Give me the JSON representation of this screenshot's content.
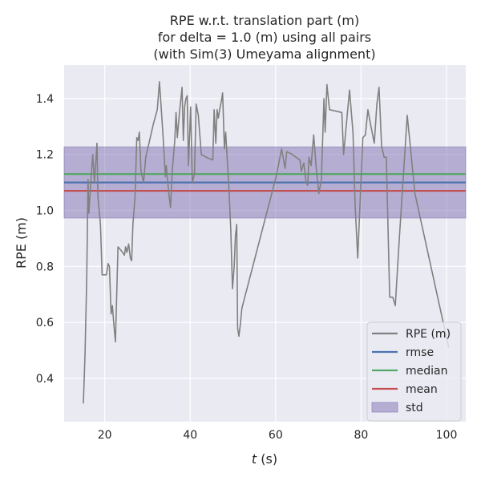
{
  "chart_data": {
    "type": "line",
    "title_lines": [
      "RPE w.r.t. translation part (m)",
      "for delta = 1.0 (m) using all pairs",
      "(with Sim(3) Umeyama alignment)"
    ],
    "xlabel_italic": "t",
    "xlabel_rest": " (s)",
    "ylabel": "RPE (m)",
    "xlim": [
      10.5,
      104.5
    ],
    "ylim": [
      0.245,
      1.52
    ],
    "xticks": [
      20,
      40,
      60,
      80,
      100
    ],
    "yticks": [
      0.4,
      0.6,
      0.8,
      1.0,
      1.2,
      1.4
    ],
    "grid": true,
    "legend_position": "lower-right",
    "colors": {
      "background": "#eaeaf2",
      "grid": "#ffffff",
      "rpe": "#808080",
      "rmse": "#4c72b0",
      "median": "#55a868",
      "mean": "#c44e52",
      "std_fill": "#8172b2"
    },
    "stats": {
      "rmse": 1.1,
      "median": 1.13,
      "mean": 1.07,
      "std": 0.127
    },
    "legend": [
      {
        "key": "rpe",
        "label": "RPE (m)",
        "kind": "line"
      },
      {
        "key": "rmse",
        "label": "rmse",
        "kind": "line"
      },
      {
        "key": "median",
        "label": "median",
        "kind": "line"
      },
      {
        "key": "mean",
        "label": "mean",
        "kind": "line"
      },
      {
        "key": "std_fill",
        "label": "std",
        "kind": "patch"
      }
    ],
    "series": [
      {
        "name": "RPE (m)",
        "points": [
          [
            15,
            0.31
          ],
          [
            15.4,
            0.49
          ],
          [
            15.8,
            0.76
          ],
          [
            16.1,
            1.11
          ],
          [
            16.3,
            0.99
          ],
          [
            16.7,
            1.09
          ],
          [
            17.2,
            1.2
          ],
          [
            17.6,
            1.1
          ],
          [
            18.2,
            1.24
          ],
          [
            18.4,
            1.05
          ],
          [
            19,
            0.95
          ],
          [
            19.4,
            0.77
          ],
          [
            20.4,
            0.77
          ],
          [
            20.8,
            0.81
          ],
          [
            21.1,
            0.8
          ],
          [
            21.5,
            0.63
          ],
          [
            21.8,
            0.66
          ],
          [
            22.1,
            0.6
          ],
          [
            22.5,
            0.53
          ],
          [
            23.1,
            0.87
          ],
          [
            24.2,
            0.85
          ],
          [
            24.6,
            0.84
          ],
          [
            24.9,
            0.87
          ],
          [
            25.2,
            0.85
          ],
          [
            25.6,
            0.88
          ],
          [
            26,
            0.83
          ],
          [
            26.3,
            0.82
          ],
          [
            26.6,
            0.95
          ],
          [
            27.1,
            1.05
          ],
          [
            27.5,
            1.26
          ],
          [
            27.8,
            1.25
          ],
          [
            28.1,
            1.28
          ],
          [
            28.5,
            1.14
          ],
          [
            29.1,
            1.1
          ],
          [
            29.6,
            1.19
          ],
          [
            31.4,
            1.31
          ],
          [
            32.3,
            1.36
          ],
          [
            32.8,
            1.46
          ],
          [
            33.6,
            1.28
          ],
          [
            34.2,
            1.12
          ],
          [
            34.4,
            1.16
          ],
          [
            35,
            1.06
          ],
          [
            35.4,
            1.01
          ],
          [
            35.8,
            1.14
          ],
          [
            36.4,
            1.25
          ],
          [
            36.7,
            1.35
          ],
          [
            37,
            1.26
          ],
          [
            37.5,
            1.35
          ],
          [
            38.1,
            1.44
          ],
          [
            38.4,
            1.25
          ],
          [
            38.7,
            1.37
          ],
          [
            39,
            1.4
          ],
          [
            39.3,
            1.41
          ],
          [
            39.6,
            1.16
          ],
          [
            40.1,
            1.37
          ],
          [
            40.5,
            1.1
          ],
          [
            41,
            1.13
          ],
          [
            41.4,
            1.38
          ],
          [
            41.9,
            1.34
          ],
          [
            42.6,
            1.2
          ],
          [
            43.8,
            1.19
          ],
          [
            45.3,
            1.18
          ],
          [
            45.6,
            1.36
          ],
          [
            46,
            1.24
          ],
          [
            46.3,
            1.36
          ],
          [
            46.6,
            1.33
          ],
          [
            46.9,
            1.36
          ],
          [
            47.3,
            1.39
          ],
          [
            47.6,
            1.42
          ],
          [
            48,
            1.22
          ],
          [
            48.3,
            1.28
          ],
          [
            48.6,
            1.2
          ],
          [
            49.1,
            1.07
          ],
          [
            49.5,
            0.93
          ],
          [
            49.9,
            0.72
          ],
          [
            50.3,
            0.8
          ],
          [
            50.6,
            0.91
          ],
          [
            50.9,
            0.95
          ],
          [
            51.1,
            0.58
          ],
          [
            51.4,
            0.55
          ],
          [
            51.8,
            0.6
          ],
          [
            52.1,
            0.65
          ],
          [
            60.1,
            1.12
          ],
          [
            61.4,
            1.22
          ],
          [
            62.2,
            1.15
          ],
          [
            62.6,
            1.21
          ],
          [
            63.9,
            1.2
          ],
          [
            65.7,
            1.18
          ],
          [
            66,
            1.14
          ],
          [
            66.6,
            1.17
          ],
          [
            67.1,
            1.1
          ],
          [
            67.5,
            1.09
          ],
          [
            67.8,
            1.19
          ],
          [
            68.3,
            1.16
          ],
          [
            68.9,
            1.27
          ],
          [
            69.5,
            1.15
          ],
          [
            70.1,
            1.06
          ],
          [
            70.7,
            1.11
          ],
          [
            71.3,
            1.4
          ],
          [
            71.6,
            1.28
          ],
          [
            72,
            1.45
          ],
          [
            72.6,
            1.36
          ],
          [
            75.5,
            1.35
          ],
          [
            75.9,
            1.2
          ],
          [
            77.3,
            1.43
          ],
          [
            78.1,
            1.28
          ],
          [
            78.6,
            1.02
          ],
          [
            79.2,
            0.83
          ],
          [
            80.4,
            1.26
          ],
          [
            81,
            1.27
          ],
          [
            81.6,
            1.36
          ],
          [
            82.2,
            1.31
          ],
          [
            83.1,
            1.24
          ],
          [
            83.7,
            1.38
          ],
          [
            84.2,
            1.44
          ],
          [
            84.8,
            1.23
          ],
          [
            85.4,
            1.19
          ],
          [
            85.9,
            1.19
          ],
          [
            86.7,
            0.69
          ],
          [
            87.4,
            0.69
          ],
          [
            88,
            0.66
          ],
          [
            88.9,
            0.89
          ],
          [
            90.8,
            1.34
          ],
          [
            92.6,
            1.06
          ],
          [
            100.5,
            0.51
          ]
        ]
      }
    ]
  }
}
